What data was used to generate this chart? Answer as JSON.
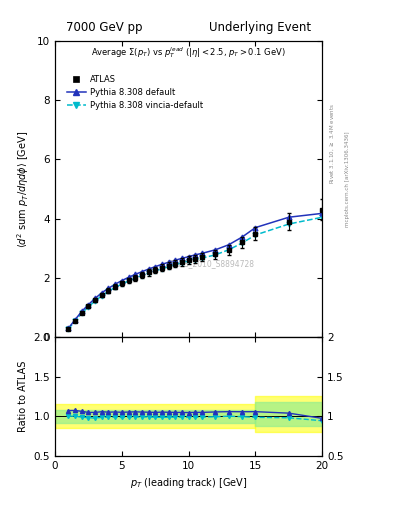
{
  "title_left": "7000 GeV pp",
  "title_right": "Underlying Event",
  "plot_title": "Average $\\Sigma(p_T)$ vs $p_T^{lead}$ ($|\\eta| < 2.5$, $p_T > 0.1$ GeV)",
  "xlabel": "$p_T$ (leading track) [GeV]",
  "ylabel_main": "$\\langle d^2$ sum $p_T/d\\eta d\\phi\\rangle$ [GeV]",
  "ylabel_ratio": "Ratio to ATLAS",
  "right_label_top": "Rivet 3.1.10, $\\geq$ 3.4M events",
  "right_label_bot": "mcplots.cern.ch [arXiv:1306.3436]",
  "watermark": "ATLAS_2010_S8894728",
  "ylim_main": [
    0,
    10
  ],
  "ylim_ratio": [
    0.5,
    2.0
  ],
  "xlim": [
    0,
    20
  ],
  "atlas_x": [
    1.0,
    1.5,
    2.0,
    2.5,
    3.0,
    3.5,
    4.0,
    4.5,
    5.0,
    5.5,
    6.0,
    6.5,
    7.0,
    7.5,
    8.0,
    8.5,
    9.0,
    9.5,
    10.0,
    10.5,
    11.0,
    12.0,
    13.0,
    14.0,
    15.0,
    17.5,
    20.0
  ],
  "atlas_y": [
    0.28,
    0.55,
    0.82,
    1.05,
    1.25,
    1.42,
    1.57,
    1.7,
    1.82,
    1.92,
    2.01,
    2.1,
    2.19,
    2.27,
    2.34,
    2.41,
    2.48,
    2.54,
    2.6,
    2.65,
    2.7,
    2.8,
    2.95,
    3.2,
    3.5,
    3.9,
    4.3
  ],
  "atlas_yerr": [
    0.02,
    0.03,
    0.04,
    0.05,
    0.06,
    0.07,
    0.08,
    0.08,
    0.09,
    0.09,
    0.1,
    0.1,
    0.11,
    0.11,
    0.12,
    0.12,
    0.12,
    0.13,
    0.13,
    0.13,
    0.14,
    0.15,
    0.16,
    0.18,
    0.22,
    0.28,
    0.35
  ],
  "pythia_def_x": [
    1.0,
    1.5,
    2.0,
    2.5,
    3.0,
    3.5,
    4.0,
    4.5,
    5.0,
    5.5,
    6.0,
    6.5,
    7.0,
    7.5,
    8.0,
    8.5,
    9.0,
    9.5,
    10.0,
    10.5,
    11.0,
    12.0,
    13.0,
    14.0,
    15.0,
    17.5,
    20.0
  ],
  "pythia_def_y": [
    0.3,
    0.59,
    0.87,
    1.1,
    1.31,
    1.5,
    1.65,
    1.79,
    1.91,
    2.02,
    2.12,
    2.21,
    2.3,
    2.38,
    2.46,
    2.53,
    2.6,
    2.66,
    2.72,
    2.78,
    2.83,
    2.95,
    3.12,
    3.38,
    3.7,
    4.05,
    4.18
  ],
  "pythia_vincia_x": [
    1.0,
    1.5,
    2.0,
    2.5,
    3.0,
    3.5,
    4.0,
    4.5,
    5.0,
    5.5,
    6.0,
    6.5,
    7.0,
    7.5,
    8.0,
    8.5,
    9.0,
    9.5,
    10.0,
    10.5,
    11.0,
    12.0,
    13.0,
    14.0,
    15.0,
    17.5,
    20.0
  ],
  "pythia_vincia_y": [
    0.28,
    0.55,
    0.81,
    1.03,
    1.22,
    1.4,
    1.55,
    1.68,
    1.79,
    1.9,
    1.99,
    2.08,
    2.17,
    2.24,
    2.31,
    2.38,
    2.45,
    2.51,
    2.57,
    2.62,
    2.67,
    2.78,
    2.95,
    3.18,
    3.45,
    3.82,
    4.05
  ],
  "atlas_color": "black",
  "pythia_def_color": "#2233bb",
  "pythia_vincia_color": "#00bbcc",
  "yticks_main": [
    0,
    2,
    4,
    6,
    8,
    10
  ],
  "yticks_ratio": [
    0.5,
    1.0,
    1.5,
    2.0
  ],
  "xticks": [
    0,
    5,
    10,
    15,
    20
  ]
}
